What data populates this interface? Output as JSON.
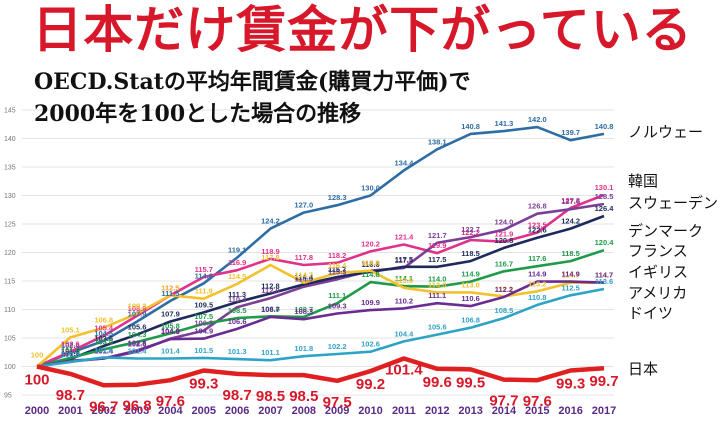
{
  "title": "日本だけ賃金が下がっている",
  "subtitle_line1": "OECD.Statの平均年間賃金(購買力平価)で",
  "subtitle_line2": "2000年を100とした場合の推移",
  "chart_data": {
    "type": "line",
    "title": "日本だけ賃金が下がっている",
    "subtitle": "OECD.Statの平均年間賃金(購買力平価)で 2000年を100とした場合の推移",
    "xlabel": "",
    "ylabel": "",
    "ylim": [
      95,
      145
    ],
    "yticks": [
      95,
      100,
      105,
      110,
      115,
      120,
      125,
      130,
      135,
      140,
      145
    ],
    "grid": true,
    "legend": "right (labels at line ends)",
    "x": [
      "2000",
      "2001",
      "2002",
      "2003",
      "2004",
      "2005",
      "2006",
      "2007",
      "2008",
      "2009",
      "2010",
      "2011",
      "2012",
      "2013",
      "2014",
      "2015",
      "2016",
      "2017"
    ],
    "series": [
      {
        "name": "ノルウェー",
        "color": "#2e6da4",
        "values": [
          100,
          102.4,
          104.5,
          107.9,
          111.5,
          114.6,
          119.1,
          124.2,
          127.0,
          128.3,
          130.0,
          134.4,
          138.1,
          140.8,
          141.3,
          142.0,
          139.7,
          140.8
        ]
      },
      {
        "name": "韓国",
        "color": "#e0318b",
        "values": [
          100,
          102.6,
          105.4,
          108.9,
          112.5,
          115.7,
          116.9,
          118.9,
          117.8,
          118.2,
          120.2,
          121.4,
          119.9,
          122.2,
          121.9,
          123.5,
          127.8,
          130.1
        ]
      },
      {
        "name": "スウェーデン",
        "color": "#7b3f98",
        "values": [
          100,
          100.9,
          101.4,
          102.6,
          104.9,
          106.3,
          110.4,
          112.0,
          114.0,
          115.3,
          116.8,
          117.3,
          121.7,
          122.7,
          124.0,
          126.8,
          127.6,
          128.5
        ]
      },
      {
        "name": "デンマーク",
        "color": "#1f2a5c",
        "values": [
          100,
          101.3,
          103.6,
          105.6,
          107.9,
          109.5,
          111.3,
          112.8,
          114.4,
          115.7,
          116.6,
          117.5,
          117.5,
          118.5,
          120.8,
          122.6,
          124.2,
          126.4
        ]
      },
      {
        "name": "フランス",
        "color": "#1f9a4a",
        "values": [
          100,
          101.5,
          103.0,
          104.3,
          105.8,
          107.5,
          108.5,
          108.8,
          108.7,
          111.1,
          114.8,
          114.1,
          114.0,
          114.9,
          116.7,
          117.6,
          118.5,
          120.4
        ]
      },
      {
        "name": "イギリス",
        "color": "#f2c12e",
        "values": [
          100,
          105.1,
          106.8,
          109.3,
          112.5,
          111.9,
          114.5,
          117.8,
          114.7,
          116.4,
          116.8,
          113.8,
          113.0,
          113.0,
          112.3,
          113.2,
          114.7,
          114.7
        ]
      },
      {
        "name": "アメリカ",
        "color": "#6a2c91",
        "values": [
          100,
          101.0,
          101.4,
          102.8,
          104.8,
          104.9,
          106.6,
          108.7,
          108.3,
          109.3,
          109.9,
          110.2,
          111.1,
          110.6,
          112.2,
          114.9,
          114.9,
          114.7
        ]
      },
      {
        "name": "ドイツ",
        "color": "#2fa3c6",
        "values": [
          100,
          100.8,
          101.6,
          101.4,
          101.4,
          101.5,
          101.3,
          101.1,
          101.8,
          102.2,
          102.6,
          104.4,
          105.6,
          106.8,
          108.5,
          110.8,
          112.5,
          113.6
        ]
      },
      {
        "name": "日本",
        "color": "#e02020",
        "values": [
          100,
          98.7,
          96.7,
          96.8,
          97.6,
          99.3,
          98.7,
          98.5,
          98.5,
          97.5,
          99.2,
          101.4,
          99.6,
          99.5,
          97.7,
          97.6,
          99.3,
          99.7
        ]
      }
    ]
  }
}
